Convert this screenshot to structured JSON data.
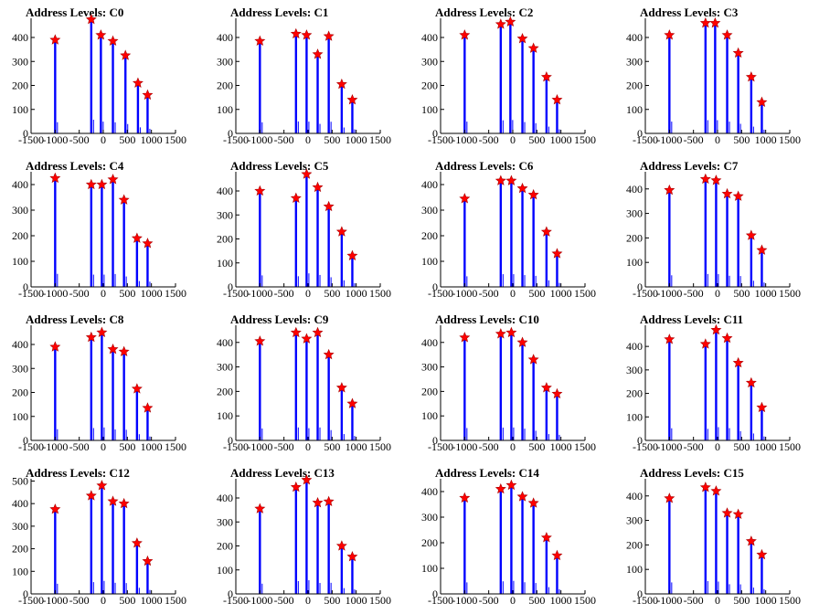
{
  "colors": {
    "histogram": "#0000ff",
    "marker": "#ff0000",
    "axis": "#000000"
  },
  "chart_data": [
    {
      "type": "bar",
      "title": "Address Levels: C0",
      "xlim": [
        -1500,
        1500
      ],
      "ylim": [
        0,
        480
      ],
      "yticks": [
        0,
        100,
        200,
        300,
        400
      ],
      "xticks": [
        -1500,
        -1000,
        -500,
        0,
        500,
        1000,
        1500
      ],
      "grid": false,
      "peaks": {
        "x": [
          -1000,
          -250,
          -50,
          200,
          460,
          720,
          920
        ],
        "y": [
          390,
          475,
          410,
          385,
          325,
          210,
          160
        ]
      }
    },
    {
      "type": "bar",
      "title": "Address Levels: C1",
      "xlim": [
        -1500,
        1500
      ],
      "ylim": [
        0,
        480
      ],
      "yticks": [
        0,
        100,
        200,
        300,
        400
      ],
      "xticks": [
        -1500,
        -1000,
        -500,
        0,
        500,
        1000,
        1500
      ],
      "grid": false,
      "peaks": {
        "x": [
          -1000,
          -250,
          -30,
          200,
          430,
          700,
          920
        ],
        "y": [
          385,
          415,
          410,
          330,
          405,
          205,
          140
        ]
      }
    },
    {
      "type": "bar",
      "title": "Address Levels: C2",
      "xlim": [
        -1500,
        1500
      ],
      "ylim": [
        0,
        480
      ],
      "yticks": [
        0,
        100,
        200,
        300,
        400
      ],
      "xticks": [
        -1500,
        -1000,
        -500,
        0,
        500,
        1000,
        1500
      ],
      "grid": false,
      "peaks": {
        "x": [
          -1000,
          -250,
          -50,
          200,
          430,
          700,
          920
        ],
        "y": [
          410,
          455,
          465,
          395,
          355,
          235,
          140
        ]
      }
    },
    {
      "type": "bar",
      "title": "Address Levels: C3",
      "xlim": [
        -1500,
        1500
      ],
      "ylim": [
        0,
        480
      ],
      "yticks": [
        0,
        100,
        200,
        300,
        400
      ],
      "xticks": [
        -1500,
        -1000,
        -500,
        0,
        500,
        1000,
        1500
      ],
      "grid": false,
      "peaks": {
        "x": [
          -1000,
          -250,
          -50,
          200,
          430,
          700,
          920
        ],
        "y": [
          410,
          460,
          460,
          410,
          335,
          235,
          130
        ]
      }
    },
    {
      "type": "bar",
      "title": "Address Levels: C4",
      "xlim": [
        -1500,
        1500
      ],
      "ylim": [
        0,
        450
      ],
      "yticks": [
        0,
        100,
        200,
        300,
        400
      ],
      "xticks": [
        -1500,
        -1000,
        -500,
        0,
        500,
        1000,
        1500
      ],
      "grid": false,
      "peaks": {
        "x": [
          -1000,
          -250,
          -30,
          200,
          430,
          700,
          920
        ],
        "y": [
          425,
          400,
          400,
          420,
          340,
          190,
          170
        ]
      }
    },
    {
      "type": "bar",
      "title": "Address Levels: C5",
      "xlim": [
        -1500,
        1500
      ],
      "ylim": [
        0,
        480
      ],
      "yticks": [
        0,
        100,
        200,
        300,
        400
      ],
      "xticks": [
        -1500,
        -1000,
        -500,
        0,
        500,
        1000,
        1500
      ],
      "grid": false,
      "peaks": {
        "x": [
          -1000,
          -250,
          -30,
          200,
          430,
          700,
          920
        ],
        "y": [
          400,
          370,
          470,
          415,
          335,
          230,
          130
        ]
      }
    },
    {
      "type": "bar",
      "title": "Address Levels: C6",
      "xlim": [
        -1500,
        1500
      ],
      "ylim": [
        0,
        450
      ],
      "yticks": [
        0,
        100,
        200,
        300,
        400
      ],
      "xticks": [
        -1500,
        -1000,
        -500,
        0,
        500,
        1000,
        1500
      ],
      "grid": false,
      "peaks": {
        "x": [
          -1000,
          -250,
          -30,
          200,
          430,
          700,
          920
        ],
        "y": [
          345,
          415,
          415,
          385,
          360,
          215,
          130
        ]
      }
    },
    {
      "type": "bar",
      "title": "Address Levels: C7",
      "xlim": [
        -1500,
        1500
      ],
      "ylim": [
        0,
        470
      ],
      "yticks": [
        0,
        100,
        200,
        300,
        400
      ],
      "xticks": [
        -1500,
        -1000,
        -500,
        0,
        500,
        1000,
        1500
      ],
      "grid": false,
      "peaks": {
        "x": [
          -1000,
          -250,
          -30,
          200,
          430,
          700,
          920
        ],
        "y": [
          395,
          440,
          435,
          380,
          370,
          210,
          150
        ]
      }
    },
    {
      "type": "bar",
      "title": "Address Levels: C8",
      "xlim": [
        -1500,
        1500
      ],
      "ylim": [
        0,
        480
      ],
      "yticks": [
        0,
        100,
        200,
        300,
        400
      ],
      "xticks": [
        -1500,
        -1000,
        -500,
        0,
        500,
        1000,
        1500
      ],
      "grid": false,
      "peaks": {
        "x": [
          -1000,
          -250,
          -30,
          200,
          430,
          700,
          920
        ],
        "y": [
          390,
          430,
          450,
          380,
          370,
          215,
          135
        ]
      }
    },
    {
      "type": "bar",
      "title": "Address Levels: C9",
      "xlim": [
        -1500,
        1500
      ],
      "ylim": [
        0,
        470
      ],
      "yticks": [
        0,
        100,
        200,
        300,
        400
      ],
      "xticks": [
        -1500,
        -1000,
        -500,
        0,
        500,
        1000,
        1500
      ],
      "grid": false,
      "peaks": {
        "x": [
          -1000,
          -250,
          -30,
          200,
          430,
          700,
          920
        ],
        "y": [
          405,
          440,
          415,
          440,
          350,
          215,
          150
        ]
      }
    },
    {
      "type": "bar",
      "title": "Address Levels: C10",
      "xlim": [
        -1500,
        1500
      ],
      "ylim": [
        0,
        470
      ],
      "yticks": [
        0,
        100,
        200,
        300,
        400
      ],
      "xticks": [
        -1500,
        -1000,
        -500,
        0,
        500,
        1000,
        1500
      ],
      "grid": false,
      "peaks": {
        "x": [
          -1000,
          -250,
          -30,
          200,
          430,
          700,
          920
        ],
        "y": [
          420,
          435,
          440,
          400,
          330,
          215,
          190
        ]
      }
    },
    {
      "type": "bar",
      "title": "Address Levels: C11",
      "xlim": [
        -1500,
        1500
      ],
      "ylim": [
        0,
        490
      ],
      "yticks": [
        0,
        100,
        200,
        300,
        400
      ],
      "xticks": [
        -1500,
        -1000,
        -500,
        0,
        500,
        1000,
        1500
      ],
      "grid": false,
      "peaks": {
        "x": [
          -1000,
          -250,
          -30,
          200,
          430,
          700,
          920
        ],
        "y": [
          430,
          410,
          470,
          435,
          330,
          245,
          140
        ]
      }
    },
    {
      "type": "bar",
      "title": "Address Levels: C12",
      "xlim": [
        -1500,
        1500
      ],
      "ylim": [
        0,
        510
      ],
      "yticks": [
        0,
        100,
        200,
        300,
        400,
        500
      ],
      "xticks": [
        -1500,
        -1000,
        -500,
        0,
        500,
        1000,
        1500
      ],
      "grid": false,
      "peaks": {
        "x": [
          -1000,
          -250,
          -30,
          200,
          430,
          700,
          920
        ],
        "y": [
          375,
          435,
          480,
          410,
          400,
          225,
          145
        ]
      }
    },
    {
      "type": "bar",
      "title": "Address Levels: C13",
      "xlim": [
        -1500,
        1500
      ],
      "ylim": [
        0,
        480
      ],
      "yticks": [
        0,
        100,
        200,
        300,
        400
      ],
      "xticks": [
        -1500,
        -1000,
        -500,
        0,
        500,
        1000,
        1500
      ],
      "grid": false,
      "peaks": {
        "x": [
          -1000,
          -250,
          -30,
          200,
          430,
          700,
          920
        ],
        "y": [
          355,
          445,
          475,
          380,
          385,
          200,
          155
        ]
      }
    },
    {
      "type": "bar",
      "title": "Address Levels: C14",
      "xlim": [
        -1500,
        1500
      ],
      "ylim": [
        0,
        450
      ],
      "yticks": [
        0,
        100,
        200,
        300,
        400
      ],
      "xticks": [
        -1500,
        -1000,
        -500,
        0,
        500,
        1000,
        1500
      ],
      "grid": false,
      "peaks": {
        "x": [
          -1000,
          -250,
          -30,
          200,
          430,
          700,
          920
        ],
        "y": [
          375,
          410,
          425,
          380,
          355,
          220,
          150
        ]
      }
    },
    {
      "type": "bar",
      "title": "Address Levels: C15",
      "xlim": [
        -1500,
        1500
      ],
      "ylim": [
        0,
        470
      ],
      "yticks": [
        0,
        100,
        200,
        300,
        400
      ],
      "xticks": [
        -1500,
        -1000,
        -500,
        0,
        500,
        1000,
        1500
      ],
      "grid": false,
      "peaks": {
        "x": [
          -1000,
          -250,
          -30,
          200,
          430,
          700,
          920
        ],
        "y": [
          390,
          435,
          420,
          330,
          325,
          215,
          160
        ]
      }
    }
  ]
}
